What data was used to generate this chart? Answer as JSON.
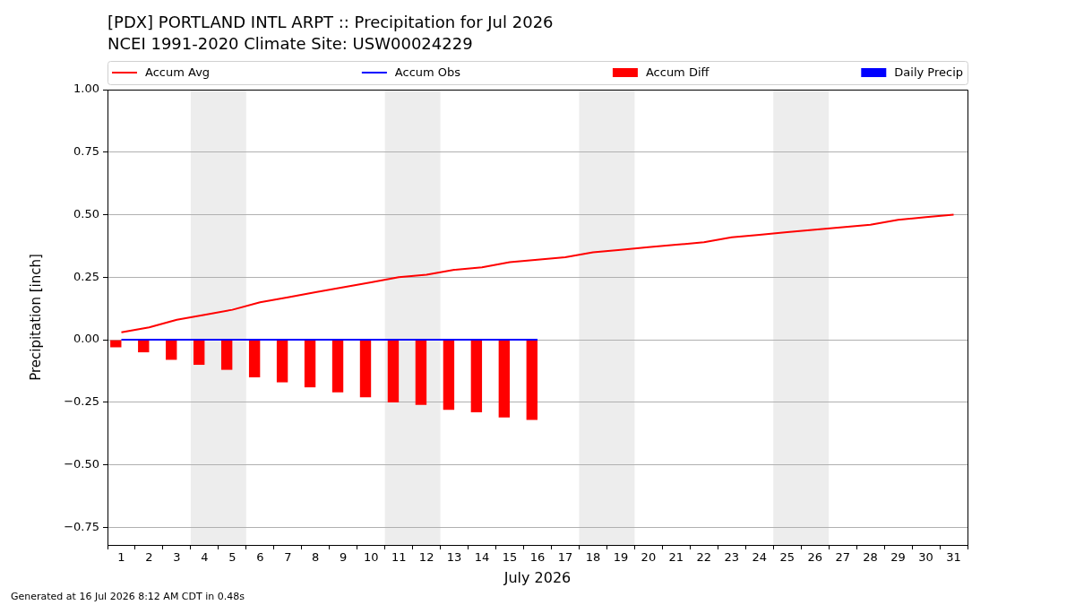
{
  "chart_data": {
    "type": "line",
    "title": "[PDX] PORTLAND INTL ARPT :: Precipitation for Jul 2026",
    "subtitle": "NCEI 1991-2020 Climate Site: USW00024229",
    "xlabel": "July 2026",
    "ylabel": "Precipitation [inch]",
    "x": [
      1,
      2,
      3,
      4,
      5,
      6,
      7,
      8,
      9,
      10,
      11,
      12,
      13,
      14,
      15,
      16,
      17,
      18,
      19,
      20,
      21,
      22,
      23,
      24,
      25,
      26,
      27,
      28,
      29,
      30,
      31
    ],
    "series": [
      {
        "name": "Accum Avg",
        "color": "#ff0000",
        "values": [
          0.03,
          0.05,
          0.08,
          0.1,
          0.12,
          0.15,
          0.17,
          0.19,
          0.21,
          0.23,
          0.25,
          0.26,
          0.28,
          0.29,
          0.31,
          0.32,
          0.33,
          0.35,
          0.36,
          0.37,
          0.38,
          0.39,
          0.41,
          0.42,
          0.43,
          0.44,
          0.45,
          0.46,
          0.48,
          0.49,
          0.5
        ]
      },
      {
        "name": "Accum Obs",
        "color": "#0000ff",
        "values": [
          0,
          0,
          0,
          0,
          0,
          0,
          0,
          0,
          0,
          0,
          0,
          0,
          0,
          0,
          0,
          0,
          null,
          null,
          null,
          null,
          null,
          null,
          null,
          null,
          null,
          null,
          null,
          null,
          null,
          null,
          null
        ]
      },
      {
        "name": "Accum Diff",
        "type": "bar",
        "color": "#ff0000",
        "values": [
          -0.03,
          -0.05,
          -0.08,
          -0.1,
          -0.12,
          -0.15,
          -0.17,
          -0.19,
          -0.21,
          -0.23,
          -0.25,
          -0.26,
          -0.28,
          -0.29,
          -0.31,
          -0.32,
          null,
          null,
          null,
          null,
          null,
          null,
          null,
          null,
          null,
          null,
          null,
          null,
          null,
          null,
          null
        ]
      },
      {
        "name": "Daily Precip",
        "type": "bar",
        "color": "#0000ff",
        "values": [
          0,
          0,
          0,
          0,
          0,
          0,
          0,
          0,
          0,
          0,
          0,
          0,
          0,
          0,
          0,
          0,
          null,
          null,
          null,
          null,
          null,
          null,
          null,
          null,
          null,
          null,
          null,
          null,
          null,
          null,
          null
        ]
      }
    ],
    "xlim": [
      0.5,
      31.5
    ],
    "xticks": [
      1,
      2,
      3,
      4,
      5,
      6,
      7,
      8,
      9,
      10,
      11,
      12,
      13,
      14,
      15,
      16,
      17,
      18,
      19,
      20,
      21,
      22,
      23,
      24,
      25,
      26,
      27,
      28,
      29,
      30,
      31
    ],
    "ylim": [
      -0.82,
      1.0
    ],
    "yticks": [
      {
        "value": -0.75,
        "label": "−0.75"
      },
      {
        "value": -0.5,
        "label": "−0.50"
      },
      {
        "value": -0.25,
        "label": "−0.25"
      },
      {
        "value": 0,
        "label": "0.00"
      },
      {
        "value": 0.25,
        "label": "0.25"
      },
      {
        "value": 0.5,
        "label": "0.50"
      },
      {
        "value": 0.75,
        "label": "0.75"
      },
      {
        "value": 1.0,
        "label": "1.00"
      }
    ],
    "grid": "y",
    "legend": "top",
    "bands": [
      {
        "axis": "x",
        "from": 3.5,
        "to": 5.5,
        "color": "#ededed"
      },
      {
        "axis": "x",
        "from": 10.5,
        "to": 12.5,
        "color": "#ededed"
      },
      {
        "axis": "x",
        "from": 17.5,
        "to": 19.5,
        "color": "#ededed"
      },
      {
        "axis": "x",
        "from": 24.5,
        "to": 26.5,
        "color": "#ededed"
      }
    ],
    "annotations": [
      "Generated at 16 Jul 2026 8:12 AM CDT in 0.48s"
    ]
  }
}
